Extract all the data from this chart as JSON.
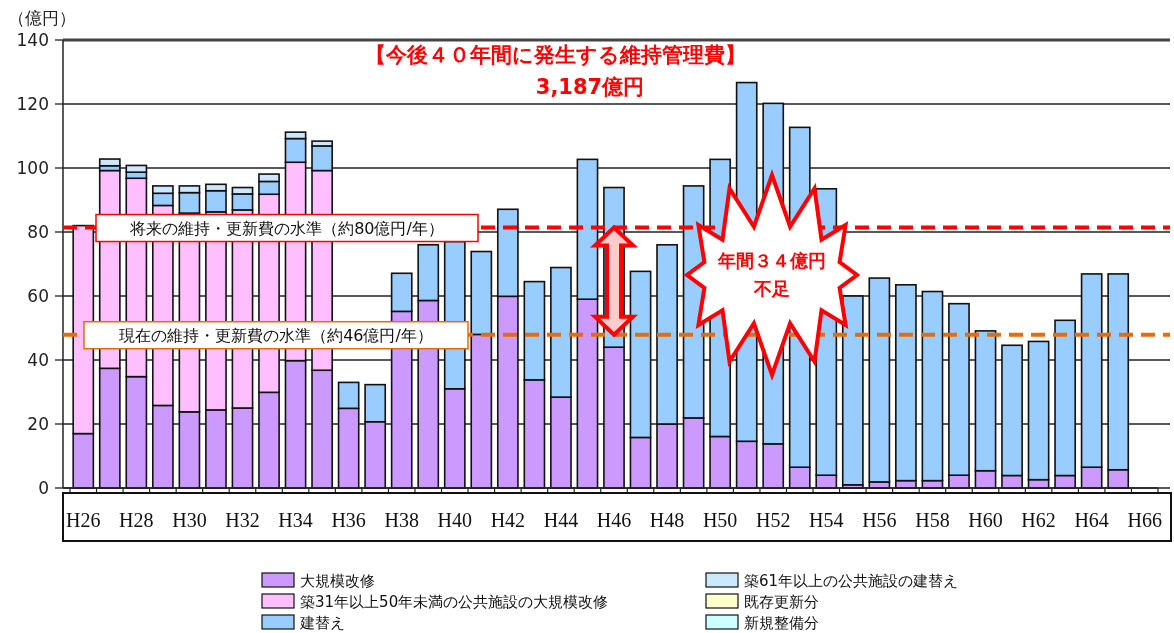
{
  "chart_data": {
    "type": "bar",
    "stacked": true,
    "title": "【今後４０年間に発生する維持管理費】",
    "subtitle": "3,187億円",
    "ylabel": "（億円）",
    "categories": [
      "H26",
      null,
      "H28",
      null,
      "H30",
      null,
      "H32",
      null,
      "H34",
      null,
      "H36",
      null,
      "H38",
      null,
      "H40",
      null,
      "H42",
      null,
      "H44",
      null,
      "H46",
      null,
      "H48",
      null,
      "H50",
      null,
      "H52",
      null,
      "H54",
      null,
      "H56",
      null,
      "H58",
      null,
      "H60",
      null,
      "H62",
      null,
      "H64",
      null,
      "H66"
    ],
    "series": [
      {
        "name": "大規模改修",
        "color": "#cc99ff",
        "values": [
          17,
          37.4,
          34.8,
          25.8,
          23.8,
          24.4,
          25.0,
          29.9,
          39.8,
          36.8,
          24.9,
          20.7,
          55.2,
          58.6,
          31.0,
          48,
          59.9,
          33.8,
          28.4,
          59.0,
          44.0,
          15.8,
          20.0,
          21.9,
          16.1,
          14.6,
          13.8,
          6.5,
          4.0,
          1.0,
          1.9,
          2.3,
          2.3,
          4.0,
          5.4,
          3.9,
          2.6,
          3.9,
          6.5,
          5.7,
          null
        ]
      },
      {
        "name": "築31年以上50年未満の公共施設の大規模改修",
        "color": "#ffbfff",
        "values": [
          65,
          61.8,
          62,
          62.5,
          62.1,
          61.9,
          61.9,
          61.9,
          62,
          62.4,
          null,
          null,
          null,
          null,
          null,
          null,
          null,
          null,
          null,
          null,
          null,
          null,
          null,
          null,
          null,
          null,
          null,
          null,
          null,
          null,
          null,
          null,
          null,
          null,
          null,
          null,
          null,
          null,
          null,
          null,
          null
        ]
      },
      {
        "name": "建替え",
        "color": "#99ccff",
        "values": [
          null,
          1.5,
          1.9,
          3.8,
          6.4,
          6.6,
          5.0,
          4.0,
          7.4,
          7.7,
          8.1,
          11.6,
          11.9,
          17.4,
          46,
          25.9,
          27.2,
          30.7,
          40.5,
          43.7,
          49.9,
          51.9,
          56.0,
          72.5,
          86.6,
          112.1,
          106.4,
          106.2,
          89.5,
          59,
          63.7,
          61.2,
          59.1,
          53.6,
          43.7,
          40.7,
          43.2,
          48.5,
          60.4,
          61.2,
          null
        ]
      },
      {
        "name": "築61年以上の公共施設の建替え",
        "color": "#cce8ff",
        "values": [
          null,
          2.1,
          2.1,
          2.3,
          2.1,
          2.0,
          2.0,
          2.3,
          2.0,
          1.5,
          null,
          null,
          null,
          null,
          null,
          null,
          null,
          null,
          null,
          null,
          null,
          null,
          null,
          null,
          null,
          null,
          null,
          null,
          null,
          null,
          null,
          null,
          null,
          null,
          null,
          null,
          null,
          null,
          null,
          null,
          null
        ]
      },
      {
        "name": "既存更新分",
        "color": "#ffffcc",
        "values": [
          null,
          null,
          null,
          null,
          null,
          null,
          null,
          null,
          null,
          null,
          null,
          null,
          null,
          null,
          null,
          null,
          null,
          null,
          null,
          null,
          null,
          null,
          null,
          null,
          null,
          null,
          null,
          null,
          null,
          null,
          null,
          null,
          null,
          null,
          null,
          null,
          null,
          null,
          null,
          null,
          null
        ]
      },
      {
        "name": "新規整備分",
        "color": "#ccffff",
        "values": [
          null,
          null,
          null,
          null,
          null,
          null,
          null,
          null,
          null,
          null,
          null,
          null,
          null,
          null,
          null,
          null,
          null,
          null,
          null,
          null,
          null,
          null,
          null,
          null,
          null,
          null,
          null,
          null,
          null,
          null,
          null,
          null,
          null,
          null,
          null,
          null,
          null,
          null,
          null,
          null,
          null
        ]
      }
    ],
    "ylim": [
      0,
      140
    ],
    "yticks": [
      0,
      20,
      40,
      60,
      80,
      100,
      120,
      140
    ],
    "grid": "y",
    "legend": "bottom",
    "ref_lines": [
      {
        "axis": "y",
        "value": 81.4,
        "label": "将来の維持・更新費の水準（約80億円/年）",
        "color": "#ff0000",
        "line_style": "dashed"
      },
      {
        "axis": "y",
        "value": 47.9,
        "label": "現在の維持・更新費の水準（約46億円/年）",
        "color": "#e46c0a",
        "line_style": "dashed"
      }
    ],
    "annotations": [
      "年間３４億円",
      "不足"
    ]
  }
}
